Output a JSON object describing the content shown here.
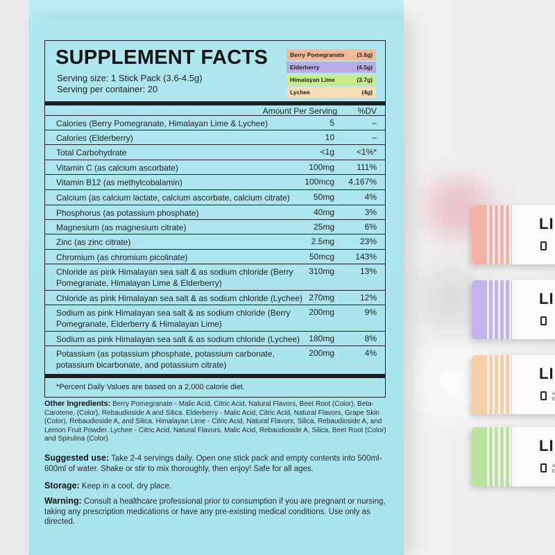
{
  "title": "SUPPLEMENT FACTS",
  "serving_size": "Serving size: 1 Stick Pack (3.6-4.5g)",
  "servings_per_container": "Serving per container: 20",
  "flavors": [
    {
      "name": "Berry Pomegranate",
      "weight": "(3.6g)",
      "color": "#f2b99b"
    },
    {
      "name": "Elderberry",
      "weight": "(4.5g)",
      "color": "#b8aee3"
    },
    {
      "name": "Himalayan Lime",
      "weight": "(3.7g)",
      "color": "#c7ec8e"
    },
    {
      "name": "Lychee",
      "weight": "(4g)",
      "color": "#f7dcb5"
    }
  ],
  "header": {
    "amount": "Amount Per Serving",
    "dv": "%DV"
  },
  "rows": [
    {
      "name": "Calories (Berry Pomegranate, Himalayan Lime & Lychee)",
      "amount": "5",
      "dv": "–"
    },
    {
      "name": "Calories (Elderberry)",
      "amount": "10",
      "dv": "–"
    },
    {
      "name": "Total Carbohydrate",
      "amount": "<1g",
      "dv": "<1%*"
    },
    {
      "name": "Vitamin C (as calcium ascorbate)",
      "amount": "100mg",
      "dv": "111%"
    },
    {
      "name": "Vitamin B12 (as methylcobalamin)",
      "amount": "100mcg",
      "dv": "4,167%"
    },
    {
      "name": "Calcium (as calcium lactate, calcium ascorbate, calcium citrate)",
      "amount": "50mg",
      "dv": "4%"
    },
    {
      "name": "Phosphorus (as potassium phosphate)",
      "amount": "40mg",
      "dv": "3%"
    },
    {
      "name": "Magnesium (as magnesium citrate)",
      "amount": "25mg",
      "dv": "6%"
    },
    {
      "name": "Zinc (as zinc citrate)",
      "amount": "2.5mg",
      "dv": "23%"
    },
    {
      "name": "Chromium (as chromium picolinate)",
      "amount": "50mcg",
      "dv": "143%"
    },
    {
      "name": "Chloride as pink Himalayan sea salt & as sodium chloride (Berry Pomegranate, Himalayan Lime & Elderberry)",
      "amount": "310mg",
      "dv": "13%"
    },
    {
      "name": "Chloride as pink Himalayan sea salt & as sodium chloride (Lychee)",
      "amount": "270mg",
      "dv": "12%"
    },
    {
      "name": "Sodium as pink Himalayan sea salt & as sodium chloride (Berry Pomegranate, Elderberry & Himalayan Lime)",
      "amount": "200mg",
      "dv": "9%"
    },
    {
      "name": "Sodium as pink Himalayan sea salt & as sodium chloride (Lychee)",
      "amount": "180mg",
      "dv": "8%"
    },
    {
      "name": "Potassium (as potassium phosphate, potassium carbonate, potassium bicarbonate, and potassium citrate)",
      "amount": "200mg",
      "dv": "4%"
    }
  ],
  "footnote": "*Percent Daily Values are based on a 2,000 calorie diet.",
  "other_ingredients": {
    "label": "Other Ingredients:",
    "text": " Berry Pomegranate - Malic Acid, Citric Acid, Natural Flavors, Beet Root (Color), Beta-Carotene, (Color), Rebaudioside A and Silica. Elderberry - Malic Acid, Citric Acid, Natural Flavors, Grape Skin (Color), Rebaudioside A, and Silica. Himalayan Lime - Citric Acid, Natural Flavors, Silica, Rebaudioside A, and Lemon Fruit Powder. Lychee - Citric Acid, Natural Flavors, Malic Acid, Rebaudioside A, Silica, Beet Root (Color) and Spirulina (Color)."
  },
  "suggested_use": {
    "label": "Suggested use:",
    "text": " Take 2-4 servings daily. Open one stick pack and empty contents into 500ml-800ml of water. Shake or stir to mix thoroughly, then enjoy! Safe for all ages."
  },
  "storage": {
    "label": "Storage:",
    "text": " Keep in a cool, dry place."
  },
  "warning": {
    "label": "Warning:",
    "text": " Consult a healthcare professional prior to consumption if you are pregnant or nursing, taking any prescription medications or have any pre-existing medical conditions. Use only as directed."
  },
  "sticks": [
    {
      "logo": "LI",
      "color": "#f3b2a4",
      "tiny": ""
    },
    {
      "logo": "LI",
      "color": "#c2b3ea",
      "tiny": ""
    },
    {
      "logo": "LI",
      "color": "#f7cfa6",
      "tiny": "A\nE"
    },
    {
      "logo": "LI",
      "color": "#b7e39c",
      "tiny": "A\nE"
    }
  ]
}
